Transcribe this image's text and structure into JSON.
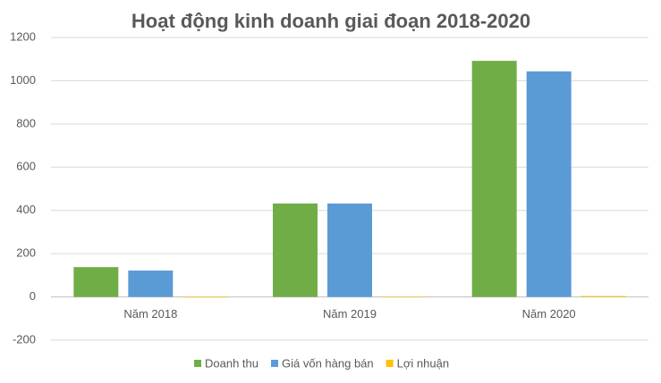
{
  "chart_data": {
    "type": "bar",
    "title": "Hoạt động kinh doanh giai đoạn 2018-2020",
    "categories": [
      "Năm 2018",
      "Năm 2019",
      "Năm 2020"
    ],
    "series": [
      {
        "name": "Doanh thu",
        "color": "#70ad47",
        "values": [
          138,
          432,
          1092
        ]
      },
      {
        "name": "Giá vốn hàng bán",
        "color": "#5b9bd5",
        "values": [
          122,
          432,
          1043
        ]
      },
      {
        "name": "Lợi nhuận",
        "color": "#ffc000",
        "values": [
          -3,
          0,
          4
        ]
      }
    ],
    "ylim": [
      -200,
      1200
    ],
    "yticks": [
      -200,
      0,
      200,
      400,
      600,
      800,
      1000,
      1200
    ],
    "grid": true,
    "legend": "bottom"
  }
}
